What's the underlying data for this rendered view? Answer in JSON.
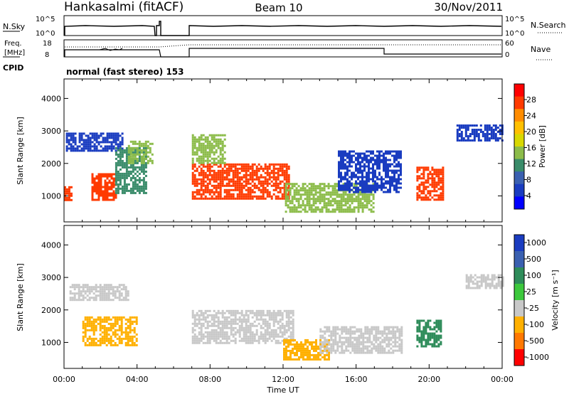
{
  "header": {
    "title_left": "Hankasalmi (fitACF)",
    "title_center": "Beam 10",
    "title_right": "30/Nov/2011"
  },
  "top_panels": {
    "nsky_label": "N.Sky",
    "nsearch_label": "N.Search",
    "nsky_ticks": [
      "10^5",
      "10^0"
    ],
    "freq_label_1": "Freq.",
    "freq_label_2": "[MHz]",
    "nave_label": "Nave",
    "freq_ticks": [
      "18",
      "8"
    ],
    "nave_ticks": [
      "60",
      "0"
    ],
    "cpid_label": "CPID",
    "cpid_text": "normal (fast stereo) 153"
  },
  "power_colorbar": {
    "label": "Power [dB]",
    "ticks": [
      "28",
      "24",
      "20",
      "16",
      "12",
      "8",
      "4"
    ],
    "colors": [
      "#ff0000",
      "#ff3a00",
      "#ff8c00",
      "#ffc000",
      "#d8d800",
      "#8cbc4a",
      "#3a8c6a",
      "#3a60b0",
      "#1a3cc0",
      "#0000ff"
    ]
  },
  "velocity_colorbar": {
    "label": "Velocity [m s⁻¹]",
    "ticks": [
      "1000",
      "500",
      "100",
      "25",
      "-25",
      "-100",
      "-500",
      "-1000"
    ],
    "colors": [
      "#1a3cc0",
      "#3a60b0",
      "#2e8c5a",
      "#3cc83c",
      "#c8c8c8",
      "#ffb000",
      "#ff7800",
      "#ff0000"
    ]
  },
  "axes": {
    "ylabel": "Slant Range [km]",
    "xlabel": "Time UT",
    "xticks": [
      "00:00",
      "04:00",
      "08:00",
      "12:00",
      "16:00",
      "20:00",
      "00:00"
    ],
    "yticks": [
      "1000",
      "2000",
      "3000",
      "4000"
    ]
  },
  "chart_data": [
    {
      "type": "heatmap",
      "title": "",
      "xlabel": "",
      "ylabel": "Slant Range [km]",
      "xlim": [
        0,
        24
      ],
      "ylim": [
        200,
        4600
      ],
      "colorbar": "Power [dB]",
      "data_gap_hours": [
        5.3,
        7.0
      ],
      "regions": [
        {
          "t0": 0.0,
          "t1": 0.4,
          "r0": 850,
          "r1": 1300,
          "value": 28
        },
        {
          "t0": 0.1,
          "t1": 3.2,
          "r0": 2400,
          "r1": 2950,
          "value": 8
        },
        {
          "t0": 1.5,
          "t1": 2.9,
          "r0": 900,
          "r1": 1700,
          "value": 28
        },
        {
          "t0": 2.8,
          "t1": 4.5,
          "r0": 1100,
          "r1": 2500,
          "value": 12
        },
        {
          "t0": 3.5,
          "t1": 4.8,
          "r0": 2000,
          "r1": 2700,
          "value": 16
        },
        {
          "t0": 7.0,
          "t1": 12.3,
          "r0": 900,
          "r1": 2000,
          "value": 28
        },
        {
          "t0": 7.0,
          "t1": 8.8,
          "r0": 2000,
          "r1": 2900,
          "value": 16
        },
        {
          "t0": 12.1,
          "t1": 17.0,
          "r0": 500,
          "r1": 1400,
          "value": 16
        },
        {
          "t0": 15.0,
          "t1": 18.5,
          "r0": 1100,
          "r1": 2400,
          "value": 8
        },
        {
          "t0": 19.3,
          "t1": 20.8,
          "r0": 900,
          "r1": 1900,
          "value": 28
        },
        {
          "t0": 21.5,
          "t1": 24.0,
          "r0": 2700,
          "r1": 3200,
          "value": 8
        }
      ]
    },
    {
      "type": "heatmap",
      "title": "",
      "xlabel": "Time UT",
      "ylabel": "Slant Range [km]",
      "xlim": [
        0,
        24
      ],
      "ylim": [
        200,
        4600
      ],
      "colorbar": "Velocity [m s⁻¹]",
      "data_gap_hours": [
        5.3,
        7.0
      ],
      "regions": [
        {
          "t0": 0.3,
          "t1": 3.5,
          "r0": 2300,
          "r1": 2800,
          "value": 0
        },
        {
          "t0": 1.0,
          "t1": 4.0,
          "r0": 900,
          "r1": 1800,
          "value": -100
        },
        {
          "t0": 7.0,
          "t1": 12.5,
          "r0": 1000,
          "r1": 2000,
          "value": 0
        },
        {
          "t0": 12.0,
          "t1": 14.5,
          "r0": 500,
          "r1": 1100,
          "value": -100
        },
        {
          "t0": 14.0,
          "t1": 18.5,
          "r0": 700,
          "r1": 1500,
          "value": 0
        },
        {
          "t0": 19.3,
          "t1": 20.7,
          "r0": 900,
          "r1": 1700,
          "value": 300
        },
        {
          "t0": 22.0,
          "t1": 24.0,
          "r0": 2700,
          "r1": 3100,
          "value": 0
        }
      ]
    }
  ]
}
